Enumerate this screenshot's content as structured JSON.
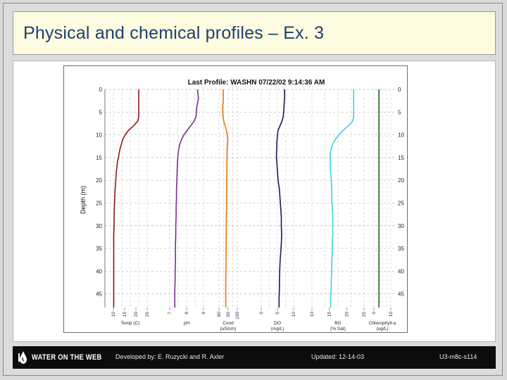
{
  "slide": {
    "title": "Physical and chemical profiles – Ex. 3"
  },
  "footer": {
    "logo_text": "WATER ON THE WEB",
    "credits": "Developed by: E. Ruzycki and R. Axler",
    "updated": "Updated: 12-14-03",
    "code": "U3-m8c-s114"
  },
  "colors": {
    "title": "#1f3f73",
    "title_bg": "#fdfbe0",
    "footer_bg": "#0c0c0c",
    "temp": "#8b1a1a",
    "ph": "#7a2f8c",
    "cond": "#e07b10",
    "do": "#1a1a5c",
    "turb": "#3fd0e0",
    "chl": "#1e6e1e"
  },
  "chart_data": {
    "type": "line",
    "title": "Last Profile: WASHN 07/22/02 9:14:36 AM",
    "ylabel": "Depth (m)",
    "ylim": [
      0,
      48
    ],
    "y_inverted": true,
    "yticks": [
      "0",
      "5",
      "10",
      "15",
      "20",
      "25",
      "30",
      "35",
      "40",
      "45"
    ],
    "yticks_right": [
      "0",
      "5",
      "10",
      "15",
      "20",
      "25",
      "30",
      "35",
      "40",
      "45"
    ],
    "grid": true,
    "depth": [
      0,
      2,
      4,
      6,
      7,
      8,
      9,
      10,
      11,
      12,
      13,
      14,
      15,
      16,
      18,
      20,
      22,
      24,
      26,
      28,
      30,
      32,
      34,
      36,
      38,
      40,
      42,
      44,
      46,
      48
    ],
    "series": [
      {
        "name": "Temp (C)",
        "panel": 0,
        "values": [
          0.75,
          0.75,
          0.75,
          0.75,
          0.72,
          0.6,
          0.45,
          0.35,
          0.28,
          0.24,
          0.2,
          0.17,
          0.15,
          0.12,
          0.09,
          0.07,
          0.05,
          0.04,
          0.03,
          0.02,
          0.02,
          0.01,
          0.01,
          0.01,
          0.01,
          0.01,
          0.01,
          0.01,
          0.01,
          0.01
        ],
        "tick_labels": [
          "10",
          "15",
          "20",
          "25"
        ]
      },
      {
        "name": "pH",
        "panel": 1,
        "values": [
          0.82,
          0.85,
          0.8,
          0.78,
          0.72,
          0.62,
          0.52,
          0.42,
          0.35,
          0.3,
          0.27,
          0.25,
          0.24,
          0.23,
          0.22,
          0.21,
          0.2,
          0.2,
          0.19,
          0.19,
          0.18,
          0.18,
          0.17,
          0.17,
          0.17,
          0.16,
          0.16,
          0.15,
          0.15,
          0.15
        ],
        "tick_labels": [
          "7",
          "8",
          "9"
        ]
      },
      {
        "name": "Cond (uS/cm)",
        "panel": 2,
        "values": [
          0.22,
          0.24,
          0.2,
          0.22,
          0.26,
          0.34,
          0.4,
          0.45,
          0.48,
          0.46,
          0.45,
          0.44,
          0.44,
          0.43,
          0.43,
          0.42,
          0.42,
          0.41,
          0.41,
          0.4,
          0.4,
          0.4,
          0.39,
          0.39,
          0.38,
          0.38,
          0.37,
          0.37,
          0.37,
          0.37
        ],
        "tick_labels": [
          "80",
          "90",
          "100"
        ]
      },
      {
        "name": "DO (mg/L)",
        "panel": 3,
        "values": [
          0.72,
          0.72,
          0.7,
          0.68,
          0.64,
          0.58,
          0.52,
          0.5,
          0.49,
          0.48,
          0.48,
          0.47,
          0.47,
          0.48,
          0.5,
          0.52,
          0.56,
          0.58,
          0.6,
          0.62,
          0.62,
          0.63,
          0.62,
          0.6,
          0.58,
          0.57,
          0.56,
          0.56,
          0.55,
          0.55
        ],
        "tick_labels": [
          "0",
          "5",
          "10"
        ]
      },
      {
        "name": "BG (% Sat)",
        "panel": 4,
        "values": [
          0.8,
          0.8,
          0.8,
          0.8,
          0.78,
          0.7,
          0.6,
          0.52,
          0.45,
          0.4,
          0.37,
          0.35,
          0.35,
          0.35,
          0.36,
          0.37,
          0.38,
          0.38,
          0.39,
          0.4,
          0.4,
          0.4,
          0.39,
          0.39,
          0.38,
          0.38,
          0.37,
          0.37,
          0.36,
          0.36
        ],
        "tick_labels": [
          "10",
          "15",
          "20",
          "25"
        ]
      },
      {
        "name": "Chlorophyll-a (ug/L)",
        "panel": 5,
        "values": [
          0.3,
          0.3,
          0.3,
          0.3,
          0.3,
          0.3,
          0.3,
          0.3,
          0.3,
          0.3,
          0.3,
          0.3,
          0.3,
          0.3,
          0.3,
          0.3,
          0.3,
          0.3,
          0.3,
          0.3,
          0.3,
          0.3,
          0.3,
          0.3,
          0.3,
          0.3,
          0.3,
          0.3,
          0.3,
          0.3
        ],
        "tick_labels": [
          "0",
          "10"
        ]
      }
    ]
  }
}
